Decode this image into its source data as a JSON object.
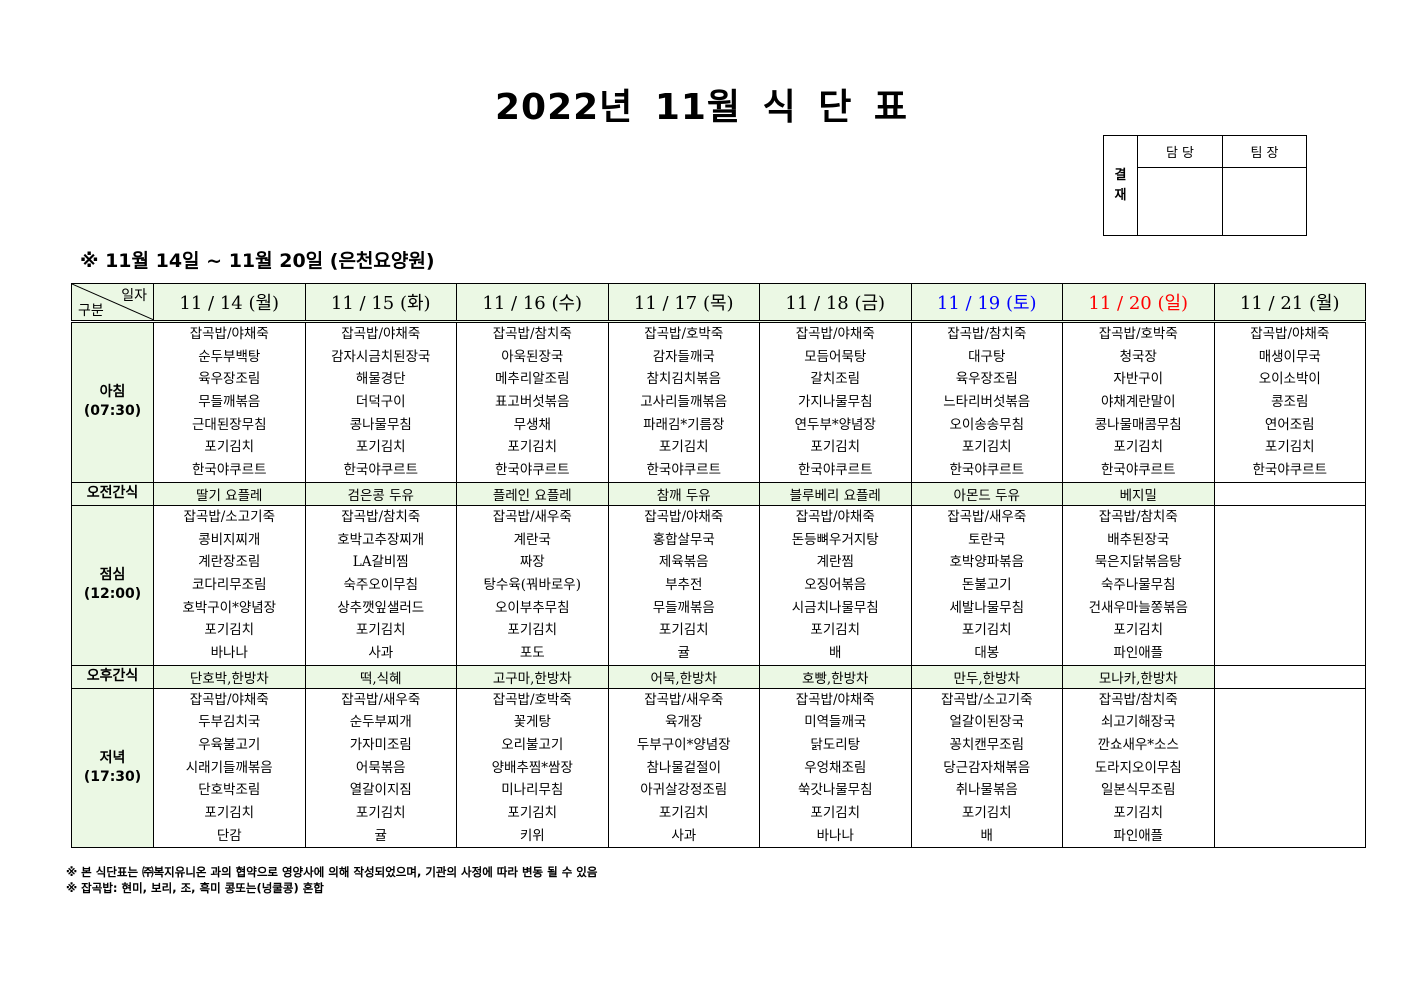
{
  "title": "2022년 11월 식 단 표",
  "approval": {
    "side_label": "결\n재",
    "col1": "담 당",
    "col2": "팀 장"
  },
  "subtitle": "※ 11월 14일 ~ 11월 20일 (은천요양원)",
  "corner": {
    "top": "일자",
    "bottom": "구분"
  },
  "rows": {
    "breakfast": [
      "아침",
      "(07:30)"
    ],
    "am_snack": "오전간식",
    "lunch": [
      "점심",
      "(12:00)"
    ],
    "pm_snack": "오후간식",
    "dinner": [
      "저녁",
      "(17:30)"
    ]
  },
  "colors": {
    "header_bg": "#ebf8e4",
    "saturday": "#0000ff",
    "sunday": "#ff0000"
  },
  "days": [
    {
      "date": "11 / 14 (월)",
      "color": "#000000",
      "breakfast": [
        "잡곡밥/야채죽",
        "순두부백탕",
        "육우장조림",
        "무들깨볶음",
        "근대된장무침",
        "포기김치",
        "한국야쿠르트"
      ],
      "am_snack": "딸기 요플레",
      "lunch": [
        "잡곡밥/소고기죽",
        "콩비지찌개",
        "계란장조림",
        "코다리무조림",
        "호박구이*양념장",
        "포기김치",
        "바나나"
      ],
      "pm_snack": "단호박,한방차",
      "dinner": [
        "잡곡밥/야채죽",
        "두부김치국",
        "우육불고기",
        "시래기들깨볶음",
        "단호박조림",
        "포기김치",
        "단감"
      ]
    },
    {
      "date": "11 / 15 (화)",
      "color": "#000000",
      "breakfast": [
        "잡곡밥/야채죽",
        "감자시금치된장국",
        "해물경단",
        "더덕구이",
        "콩나물무침",
        "포기김치",
        "한국야쿠르트"
      ],
      "am_snack": "검은콩 두유",
      "lunch": [
        "잡곡밥/참치죽",
        "호박고추장찌개",
        "LA갈비찜",
        "숙주오이무침",
        "상추깻잎샐러드",
        "포기김치",
        "사과"
      ],
      "pm_snack": "떡,식혜",
      "dinner": [
        "잡곡밥/새우죽",
        "순두부찌개",
        "가자미조림",
        "어묵볶음",
        "열갈이지짐",
        "포기김치",
        "귤"
      ]
    },
    {
      "date": "11 / 16 (수)",
      "color": "#000000",
      "breakfast": [
        "잡곡밥/참치죽",
        "아욱된장국",
        "메추리알조림",
        "표고버섯볶음",
        "무생채",
        "포기김치",
        "한국야쿠르트"
      ],
      "am_snack": "플레인 요플레",
      "lunch": [
        "잡곡밥/새우죽",
        "계란국",
        "짜장",
        "탕수육(꿔바로우)",
        "오이부추무침",
        "포기김치",
        "포도"
      ],
      "pm_snack": "고구마,한방차",
      "dinner": [
        "잡곡밥/호박죽",
        "꽃게탕",
        "오리불고기",
        "양배추찜*쌈장",
        "미나리무침",
        "포기김치",
        "키위"
      ]
    },
    {
      "date": "11 / 17 (목)",
      "color": "#000000",
      "breakfast": [
        "잡곡밥/호박죽",
        "감자들깨국",
        "참치김치볶음",
        "고사리들깨볶음",
        "파래김*기름장",
        "포기김치",
        "한국야쿠르트"
      ],
      "am_snack": "참깨 두유",
      "lunch": [
        "잡곡밥/야채죽",
        "홍합살무국",
        "제육볶음",
        "부추전",
        "무들깨볶음",
        "포기김치",
        "귤"
      ],
      "pm_snack": "어묵,한방차",
      "dinner": [
        "잡곡밥/새우죽",
        "육개장",
        "두부구이*양념장",
        "참나물겉절이",
        "아귀살강정조림",
        "포기김치",
        "사과"
      ]
    },
    {
      "date": "11 / 18 (금)",
      "color": "#000000",
      "breakfast": [
        "잡곡밥/야채죽",
        "모듬어묵탕",
        "갈치조림",
        "가지나물무침",
        "연두부*양념장",
        "포기김치",
        "한국야쿠르트"
      ],
      "am_snack": "블루베리 요플레",
      "lunch": [
        "잡곡밥/야채죽",
        "돈등뼈우거지탕",
        "계란찜",
        "오징어볶음",
        "시금치나물무침",
        "포기김치",
        "배"
      ],
      "pm_snack": "호빵,한방차",
      "dinner": [
        "잡곡밥/야채죽",
        "미역들깨국",
        "닭도리탕",
        "우엉채조림",
        "쑥갓나물무침",
        "포기김치",
        "바나나"
      ]
    },
    {
      "date": "11 / 19 (토)",
      "color": "#0000ff",
      "breakfast": [
        "잡곡밥/참치죽",
        "대구탕",
        "육우장조림",
        "느타리버섯볶음",
        "오이송송무침",
        "포기김치",
        "한국야쿠르트"
      ],
      "am_snack": "아몬드 두유",
      "lunch": [
        "잡곡밥/새우죽",
        "토란국",
        "호박양파볶음",
        "돈불고기",
        "세발나물무침",
        "포기김치",
        "대봉"
      ],
      "pm_snack": "만두,한방차",
      "dinner": [
        "잡곡밥/소고기죽",
        "얼갈이된장국",
        "꽁치캔무조림",
        "당근감자채볶음",
        "취나물볶음",
        "포기김치",
        "배"
      ]
    },
    {
      "date": "11 / 20 (일)",
      "color": "#ff0000",
      "breakfast": [
        "잡곡밥/호박죽",
        "청국장",
        "자반구이",
        "야채계란말이",
        "콩나물매콤무침",
        "포기김치",
        "한국야쿠르트"
      ],
      "am_snack": "베지밀",
      "lunch": [
        "잡곡밥/참치죽",
        "배추된장국",
        "묵은지닭볶음탕",
        "숙주나물무침",
        "건새우마늘쫑볶음",
        "포기김치",
        "파인애플"
      ],
      "pm_snack": "모나카,한방차",
      "dinner": [
        "잡곡밥/참치죽",
        "쇠고기해장국",
        "깐쇼새우*소스",
        "도라지오이무침",
        "일본식무조림",
        "포기김치",
        "파인애플"
      ]
    },
    {
      "date": "11 / 21 (월)",
      "color": "#000000",
      "breakfast": [
        "잡곡밥/야채죽",
        "매생이무국",
        "오이소박이",
        "콩조림",
        "연어조림",
        "포기김치",
        "한국야쿠르트"
      ],
      "am_snack": "",
      "lunch": [],
      "pm_snack": "",
      "dinner": []
    }
  ],
  "footnotes": [
    "※ 본 식단표는 ㈜복지유니온 과의 협약으로 영양사에 의해 작성되었으며, 기관의 사정에 따라 변동 될 수 있음",
    "※ 잡곡밥: 현미, 보리, 조, 흑미 콩또는(넝쿨콩) 혼합"
  ]
}
